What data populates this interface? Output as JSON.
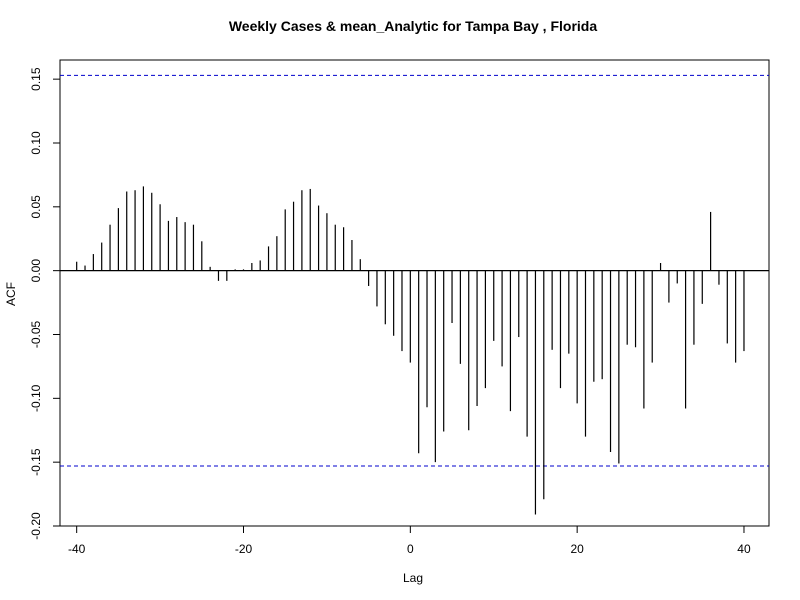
{
  "chart_data": {
    "type": "bar",
    "title": "Weekly Cases & mean_Analytic for Tampa Bay , Florida",
    "xlabel": "Lag",
    "ylabel": "ACF",
    "xlim": [
      -42,
      43
    ],
    "ylim": [
      -0.2,
      0.165
    ],
    "x_ticks": [
      -40,
      -20,
      0,
      20,
      40
    ],
    "x_tick_labels": [
      "-40",
      "-20",
      "0",
      "20",
      "40"
    ],
    "y_ticks": [
      -0.2,
      -0.15,
      -0.1,
      -0.05,
      0.0,
      0.05,
      0.1,
      0.15
    ],
    "y_tick_labels": [
      "-0.20",
      "-0.15",
      "-0.10",
      "-0.05",
      "0.00",
      "0.05",
      "0.10",
      "0.15"
    ],
    "confidence_bound": 0.153,
    "confidence_color": "#0000cc",
    "bar_color": "#000000",
    "grid": false,
    "lags": [
      -40,
      -39,
      -38,
      -37,
      -36,
      -35,
      -34,
      -33,
      -32,
      -31,
      -30,
      -29,
      -28,
      -27,
      -26,
      -25,
      -24,
      -23,
      -22,
      -21,
      -20,
      -19,
      -18,
      -17,
      -16,
      -15,
      -14,
      -13,
      -12,
      -11,
      -10,
      -9,
      -8,
      -7,
      -6,
      -5,
      -4,
      -3,
      -2,
      -1,
      0,
      1,
      2,
      3,
      4,
      5,
      6,
      7,
      8,
      9,
      10,
      11,
      12,
      13,
      14,
      15,
      16,
      17,
      18,
      19,
      20,
      21,
      22,
      23,
      24,
      25,
      26,
      27,
      28,
      29,
      30,
      31,
      32,
      33,
      34,
      35,
      36,
      37,
      38,
      39,
      40
    ],
    "acf": [
      0.007,
      0.004,
      0.013,
      0.022,
      0.036,
      0.049,
      0.062,
      0.063,
      0.066,
      0.061,
      0.052,
      0.039,
      0.042,
      0.038,
      0.036,
      0.023,
      0.003,
      -0.008,
      -0.008,
      0.001,
      0.001,
      0.006,
      0.008,
      0.019,
      0.027,
      0.048,
      0.054,
      0.063,
      0.064,
      0.051,
      0.045,
      0.036,
      0.034,
      0.024,
      0.009,
      -0.012,
      -0.028,
      -0.042,
      -0.051,
      -0.063,
      -0.072,
      -0.143,
      -0.107,
      -0.15,
      -0.126,
      -0.041,
      -0.073,
      -0.125,
      -0.106,
      -0.092,
      -0.055,
      -0.075,
      -0.11,
      -0.052,
      -0.13,
      -0.191,
      -0.179,
      -0.062,
      -0.092,
      -0.065,
      -0.104,
      -0.13,
      -0.087,
      -0.085,
      -0.142,
      -0.151,
      -0.058,
      -0.06,
      -0.108,
      -0.072,
      0.006,
      -0.025,
      -0.01,
      -0.108,
      -0.058,
      -0.026,
      0.046,
      -0.011,
      -0.057,
      -0.072,
      -0.063
    ]
  }
}
